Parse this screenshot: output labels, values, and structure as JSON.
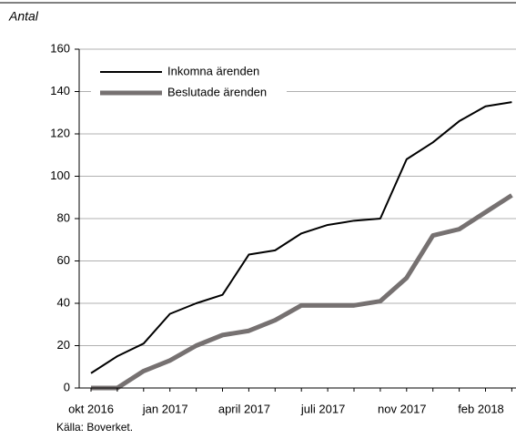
{
  "chart_data": {
    "type": "line",
    "y_label": "Antal",
    "source": "Källa: Boverket.",
    "categories": [
      "okt 2016",
      null,
      null,
      "jan 2017",
      null,
      null,
      "april 2017",
      null,
      null,
      "juli 2017",
      null,
      null,
      "nov 2017",
      null,
      null,
      "feb 2018",
      null
    ],
    "series": [
      {
        "name": "Inkomna ärenden",
        "color": "#000000",
        "values": [
          7,
          15,
          21,
          35,
          40,
          44,
          63,
          65,
          73,
          77,
          79,
          80,
          108,
          116,
          126,
          133,
          135
        ]
      },
      {
        "name": "Beslutade ärenden",
        "color": "#767171",
        "values": [
          0,
          0,
          8,
          13,
          20,
          25,
          27,
          32,
          39,
          39,
          39,
          41,
          52,
          72,
          75,
          83,
          91
        ]
      }
    ],
    "ylim": [
      0,
      160
    ],
    "yticks": [
      0,
      20,
      40,
      60,
      80,
      100,
      120,
      140,
      160
    ],
    "grid": true,
    "legend": "upper left"
  }
}
